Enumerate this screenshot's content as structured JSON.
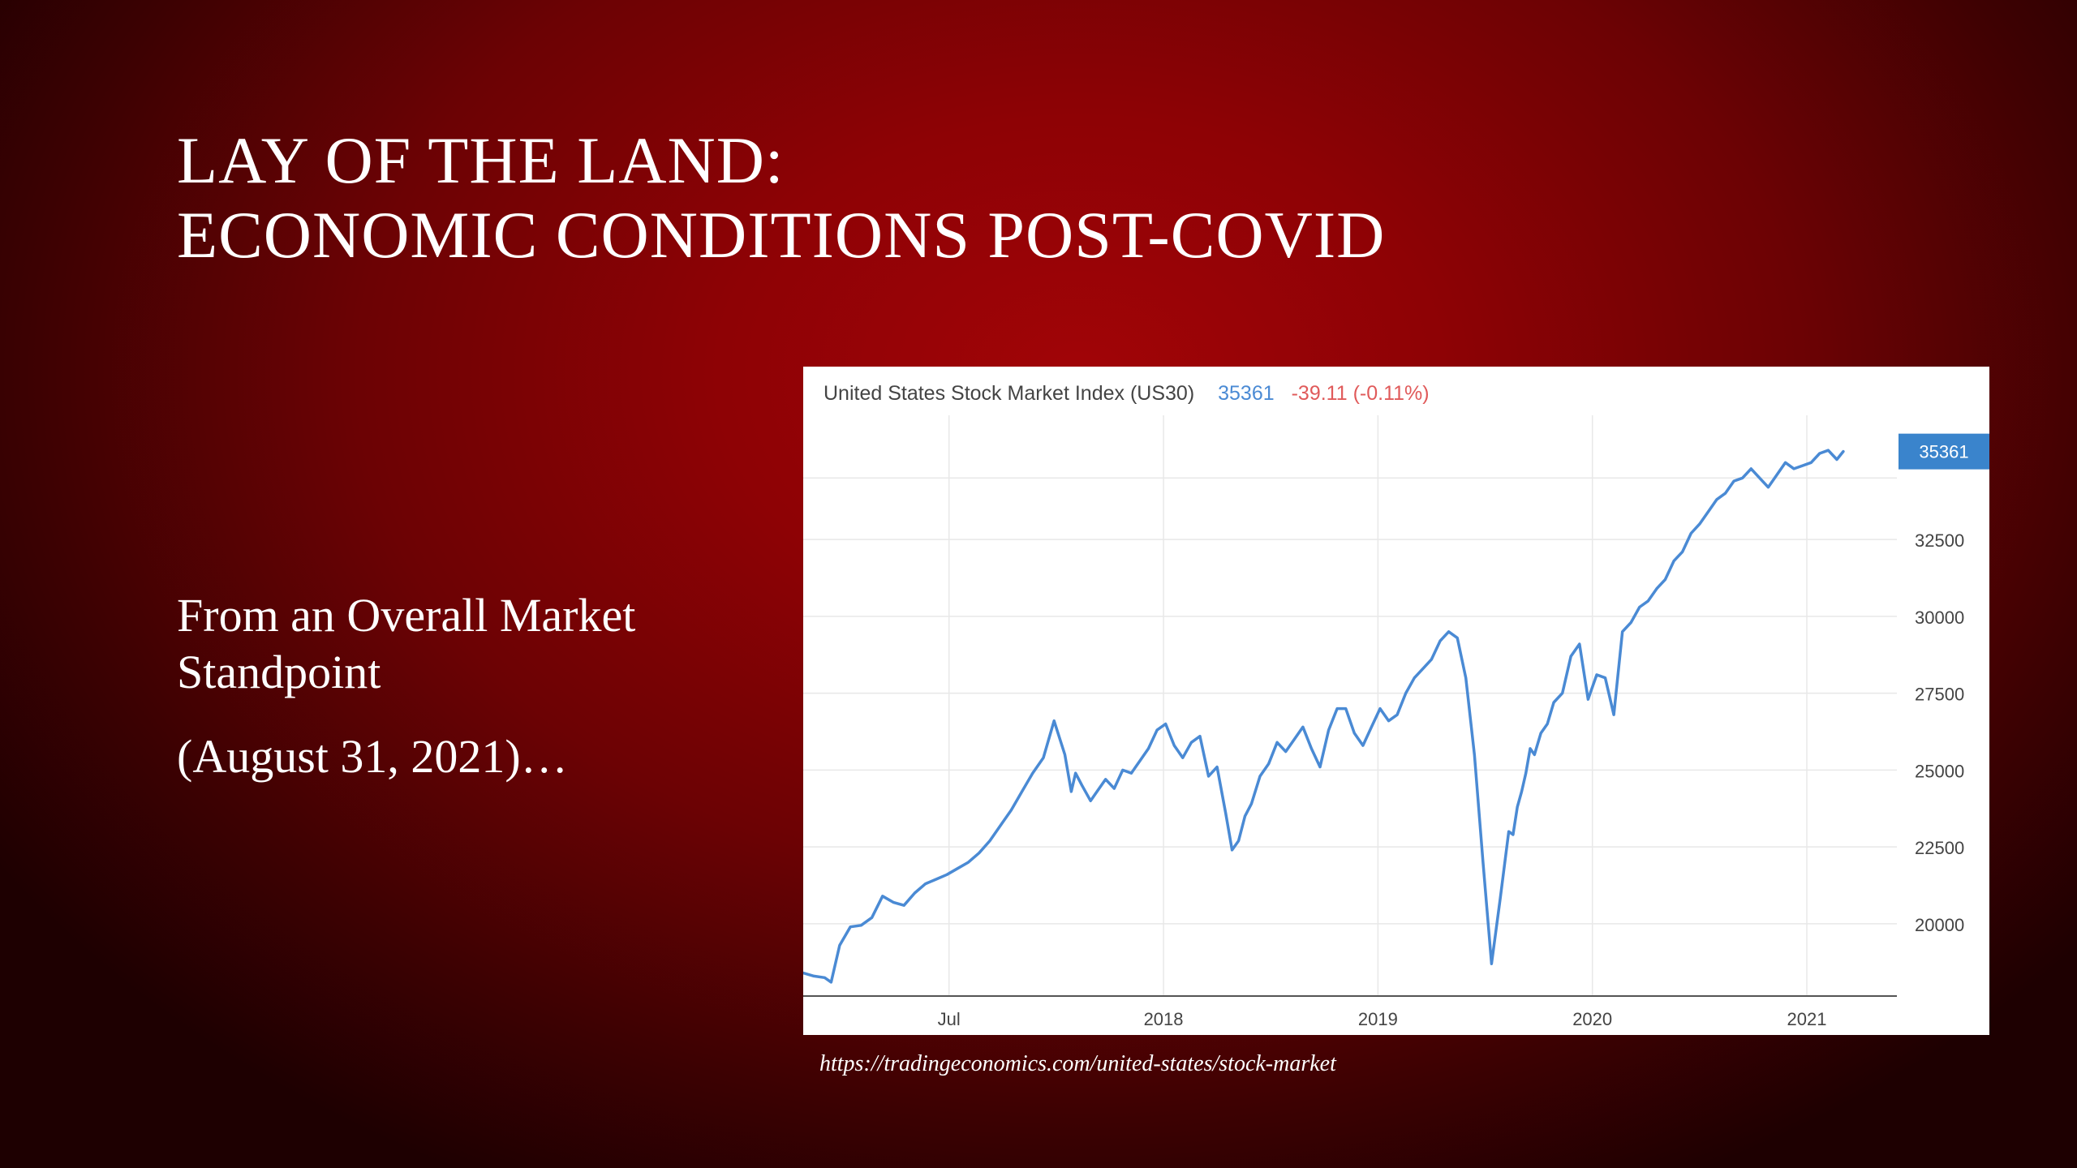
{
  "slide": {
    "title_line1": "LAY OF THE LAND:",
    "title_line2": "ECONOMIC CONDITIONS POST-COVID",
    "body_line1": "From an Overall Market Standpoint",
    "body_line2": "(August 31, 2021)…",
    "source": "https://tradingeconomics.com/united-states/stock-market"
  },
  "colors": {
    "line": "#4a8ad4",
    "last_badge": "#3a84cc",
    "change_negative": "#e05a5a",
    "grid": "#e8e8e8",
    "axis_text": "#444444"
  },
  "chart_data": {
    "type": "line",
    "title": "United States Stock Market Index (US30)",
    "last_value_label": "35361",
    "change_label": "-39.11 (-0.11%)",
    "ylim": [
      17650,
      35800
    ],
    "yticks": [
      20000,
      22500,
      25000,
      27500,
      30000,
      32500
    ],
    "ytick_labels": [
      "20000",
      "22500",
      "25000",
      "27500",
      "30000",
      "32500"
    ],
    "xlim": [
      2016.82,
      2021.92
    ],
    "xticks": [
      2017.5,
      2018.5,
      2019.5,
      2020.5,
      2021.5
    ],
    "xtick_labels": [
      "Jul",
      "2018",
      "2019",
      "2020",
      "2021"
    ],
    "grid": true,
    "y_axis_position": "right",
    "series": [
      {
        "x": [
          2016.82,
          2016.87,
          2016.92,
          2016.95,
          2016.99,
          2017.04,
          2017.09,
          2017.14,
          2017.19,
          2017.24,
          2017.29,
          2017.34,
          2017.39,
          2017.44,
          2017.49,
          2017.54,
          2017.59,
          2017.64,
          2017.69,
          2017.74,
          2017.79,
          2017.84,
          2017.89,
          2017.94,
          2017.99,
          2018.04,
          2018.07,
          2018.09,
          2018.12,
          2018.16,
          2018.19,
          2018.23,
          2018.27,
          2018.31,
          2018.35,
          2018.39,
          2018.43,
          2018.47,
          2018.51,
          2018.55,
          2018.59,
          2018.63,
          2018.67,
          2018.71,
          2018.75,
          2018.79,
          2018.82,
          2018.85,
          2018.88,
          2018.91,
          2018.95,
          2018.99,
          2019.03,
          2019.07,
          2019.11,
          2019.15,
          2019.19,
          2019.23,
          2019.27,
          2019.31,
          2019.35,
          2019.39,
          2019.43,
          2019.47,
          2019.51,
          2019.55,
          2019.59,
          2019.63,
          2019.67,
          2019.71,
          2019.75,
          2019.79,
          2019.83,
          2019.87,
          2019.91,
          2019.95,
          2019.99,
          2020.03,
          2020.07,
          2020.11,
          2020.13,
          2020.15,
          2020.17,
          2020.19,
          2020.21,
          2020.23,
          2020.26,
          2020.29,
          2020.32,
          2020.36,
          2020.4,
          2020.44,
          2020.48,
          2020.52,
          2020.56,
          2020.6,
          2020.64,
          2020.68,
          2020.72,
          2020.76,
          2020.8,
          2020.84,
          2020.88,
          2020.92,
          2020.96,
          2021.0,
          2021.04,
          2021.08,
          2021.12,
          2021.16,
          2021.2,
          2021.24,
          2021.28,
          2021.32,
          2021.36,
          2021.4,
          2021.44,
          2021.48,
          2021.52,
          2021.56,
          2021.6,
          2021.64,
          2021.67
        ],
        "y": [
          18400,
          18300,
          18250,
          18100,
          19300,
          19900,
          19950,
          20200,
          20900,
          20700,
          20600,
          21000,
          21300,
          21450,
          21600,
          21800,
          22000,
          22300,
          22700,
          23200,
          23700,
          24300,
          24900,
          25400,
          26600,
          25500,
          24300,
          24900,
          24500,
          24000,
          24300,
          24700,
          24400,
          25000,
          24900,
          25300,
          25700,
          26300,
          26500,
          25800,
          25400,
          25900,
          26100,
          24800,
          25100,
          23600,
          22400,
          22700,
          23500,
          23900,
          24800,
          25200,
          25900,
          25600,
          26000,
          26400,
          25700,
          25100,
          26300,
          27000,
          27000,
          26200,
          25800,
          26400,
          27000,
          26600,
          26800,
          27500,
          28000,
          28300,
          28600,
          29200,
          29500,
          29300,
          28000,
          25500,
          22000,
          18700,
          20800,
          23000,
          22900,
          23800,
          24300,
          24900,
          25700,
          25500,
          26200,
          26500,
          27200,
          27500,
          28700,
          29100,
          27300,
          28100,
          28000,
          26800,
          29500,
          29800,
          30300,
          30500,
          30900,
          31200,
          31800,
          32100,
          32700,
          33000,
          33400,
          33800,
          34000,
          34400,
          34500,
          34800,
          34500,
          34200,
          34600,
          35000,
          34800,
          34900,
          35000,
          35300,
          35400,
          35100,
          35361
        ]
      }
    ]
  }
}
